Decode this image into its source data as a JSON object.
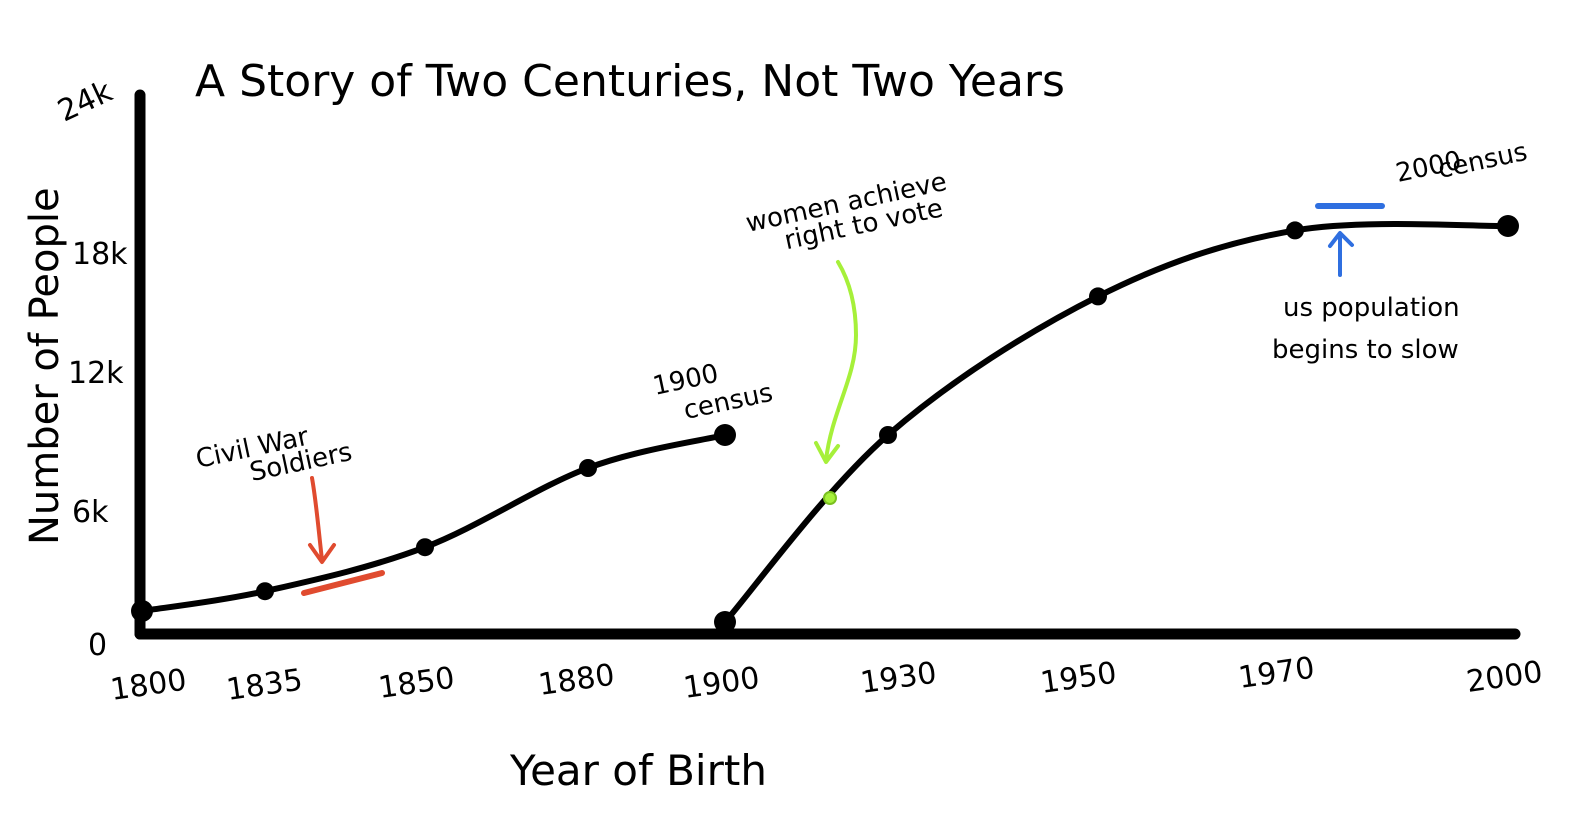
{
  "chart_data": {
    "type": "line",
    "title": "A Story of Two Centuries, Not Two Years",
    "xlabel": "Year of Birth",
    "ylabel": "Number of People",
    "x_ticks": [
      "1800",
      "1835",
      "1850",
      "1880",
      "1900",
      "1930",
      "1950",
      "1970",
      "2000"
    ],
    "y_ticks": [
      "0",
      "6k",
      "12k",
      "18k",
      "24k"
    ],
    "ylim": [
      0,
      24000
    ],
    "grid": false,
    "series": [
      {
        "points": [
          {
            "x": "1800",
            "y": 500
          },
          {
            "x": "1835",
            "y": 1400
          },
          {
            "x": "1850",
            "y": 3400
          },
          {
            "x": "1880",
            "y": 7000
          },
          {
            "x": "1900",
            "y": 8500
          }
        ],
        "annotations": [
          {
            "x": "1900",
            "y": 8500,
            "text": [
              "1900",
              "census"
            ]
          }
        ]
      },
      {
        "points": [
          {
            "x": "1900",
            "y": 0
          },
          {
            "x": "1930",
            "y": 8500
          },
          {
            "x": "1950",
            "y": 14800
          },
          {
            "x": "1970",
            "y": 17800
          },
          {
            "x": "2000",
            "y": 18000
          }
        ],
        "annotations": [
          {
            "x": "2000",
            "y": 18000,
            "text": [
              "2000",
              "census"
            ]
          }
        ]
      }
    ],
    "highlights": [
      {
        "text": [
          "Civil War",
          "Soldiers"
        ],
        "color": "#e04b2f",
        "x_from": "1835",
        "x_to": "1850"
      },
      {
        "text": [
          "women achieve",
          "right to vote"
        ],
        "color": "#a6f03a",
        "x": "1920"
      },
      {
        "text": [
          "us population",
          "begins to slow"
        ],
        "color": "#2f6fe0",
        "x": "1970"
      }
    ],
    "colors": {
      "line": "#000000",
      "red": "#e04b2f",
      "green": "#a6f03a",
      "blue": "#2f6fe0"
    }
  }
}
